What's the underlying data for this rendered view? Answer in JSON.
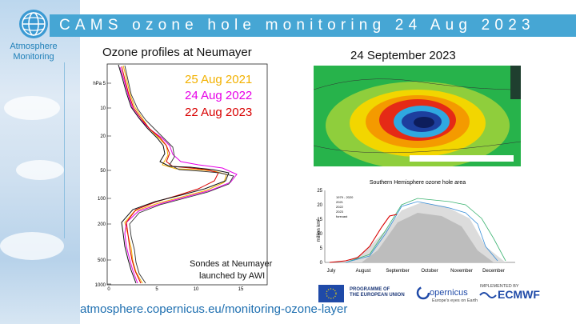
{
  "banner": {
    "title": "CAMS ozone hole monitoring 24 Aug 2023"
  },
  "brand": {
    "line1": "Atmosphere",
    "line2": "Monitoring"
  },
  "profiles": {
    "title": "Ozone profiles at Neumayer",
    "y_ticks": [
      "hPa 5",
      "10",
      "20",
      "50",
      "100",
      "200",
      "500",
      "1000"
    ],
    "x_ticks": [
      "0",
      "5",
      "10",
      "15"
    ],
    "legend": [
      {
        "label": "25 Aug 2021",
        "color": "#f2b100"
      },
      {
        "label": "24 Aug 2022",
        "color": "#e600e6"
      },
      {
        "label": "22 Aug 2023",
        "color": "#d80000"
      }
    ],
    "note_line1": "Sondes at Neumayer",
    "note_line2": "launched by AWI"
  },
  "map": {
    "title": "24 September 2023"
  },
  "hole_area": {
    "title": "Southern Hemisphere ozone hole area",
    "ylabel": "million km²",
    "y_ticks": [
      "0",
      "5",
      "10",
      "15",
      "20",
      "25"
    ],
    "months": [
      "July",
      "August",
      "September",
      "October",
      "November",
      "December"
    ],
    "legend": [
      "1979 - 2020",
      "2021",
      "2022",
      "2023",
      "forecast"
    ]
  },
  "footer": {
    "url": "atmosphere.copernicus.eu/monitoring-ozone-layer",
    "eu_line1": "PROGRAMME OF",
    "eu_line2": "THE EUROPEAN UNION",
    "copernicus": "opernicus",
    "copernicus_sub": "Europe's eyes on Earth",
    "implemented_by": "IMPLEMENTED BY",
    "ecmwf": "ECMWF"
  }
}
